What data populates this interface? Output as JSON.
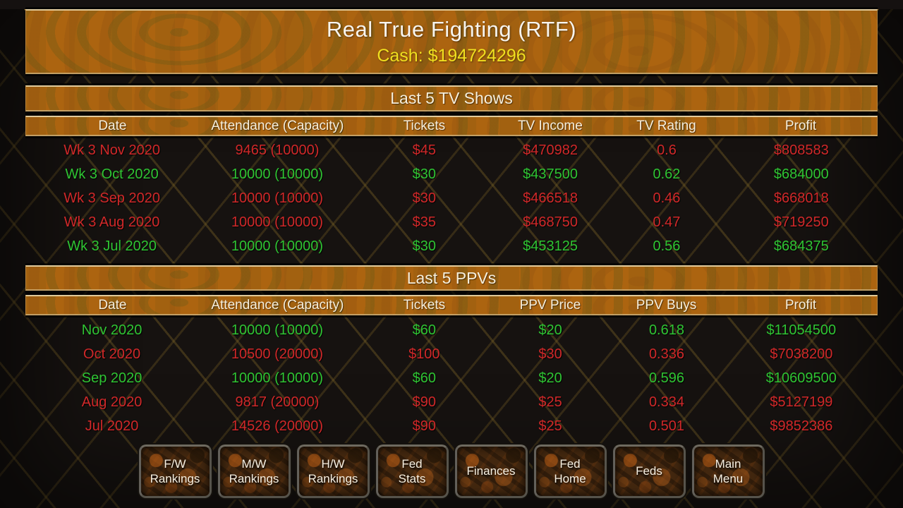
{
  "header": {
    "title": "Real True Fighting (RTF)",
    "cash": "Cash: $194724296"
  },
  "tv_shows": {
    "title": "Last 5 TV Shows",
    "columns": [
      "Date",
      "Attendance (Capacity)",
      "Tickets",
      "TV Income",
      "TV Rating",
      "Profit"
    ],
    "rows": [
      {
        "color": "red",
        "cells": [
          "Wk 3 Nov 2020",
          "9465 (10000)",
          "$45",
          "$470982",
          "0.6",
          "$808583"
        ]
      },
      {
        "color": "green",
        "cells": [
          "Wk 3 Oct 2020",
          "10000 (10000)",
          "$30",
          "$437500",
          "0.62",
          "$684000"
        ]
      },
      {
        "color": "red",
        "cells": [
          "Wk 3 Sep 2020",
          "10000 (10000)",
          "$30",
          "$466518",
          "0.46",
          "$668018"
        ]
      },
      {
        "color": "red",
        "cells": [
          "Wk 3 Aug 2020",
          "10000 (10000)",
          "$35",
          "$468750",
          "0.47",
          "$719250"
        ]
      },
      {
        "color": "green",
        "cells": [
          "Wk 3 Jul 2020",
          "10000 (10000)",
          "$30",
          "$453125",
          "0.56",
          "$684375"
        ]
      }
    ]
  },
  "ppvs": {
    "title": "Last 5 PPVs",
    "columns": [
      "Date",
      "Attendance (Capacity)",
      "Tickets",
      "PPV Price",
      "PPV Buys",
      "Profit"
    ],
    "rows": [
      {
        "color": "green",
        "cells": [
          "Nov 2020",
          "10000 (10000)",
          "$60",
          "$20",
          "0.618",
          "$11054500"
        ]
      },
      {
        "color": "red",
        "cells": [
          "Oct 2020",
          "10500 (20000)",
          "$100",
          "$30",
          "0.336",
          "$7038200"
        ]
      },
      {
        "color": "green",
        "cells": [
          "Sep 2020",
          "10000 (10000)",
          "$60",
          "$20",
          "0.596",
          "$10609500"
        ]
      },
      {
        "color": "red",
        "cells": [
          "Aug 2020",
          "9817 (20000)",
          "$90",
          "$25",
          "0.334",
          "$5127199"
        ]
      },
      {
        "color": "red",
        "cells": [
          "Jul 2020",
          "14526 (20000)",
          "$90",
          "$25",
          "0.501",
          "$9852386"
        ]
      }
    ]
  },
  "buttons": [
    {
      "label": "F/W\nRankings"
    },
    {
      "label": "M/W\nRankings"
    },
    {
      "label": "H/W\nRankings"
    },
    {
      "label": "Fed\nStats"
    },
    {
      "label": "Finances"
    },
    {
      "label": "Fed\nHome"
    },
    {
      "label": "Feds"
    },
    {
      "label": "Main\nMenu"
    }
  ],
  "colors": {
    "red": "#d02829",
    "green": "#2fc433",
    "cash": "#f0df1f",
    "orange": "#ac6410"
  }
}
